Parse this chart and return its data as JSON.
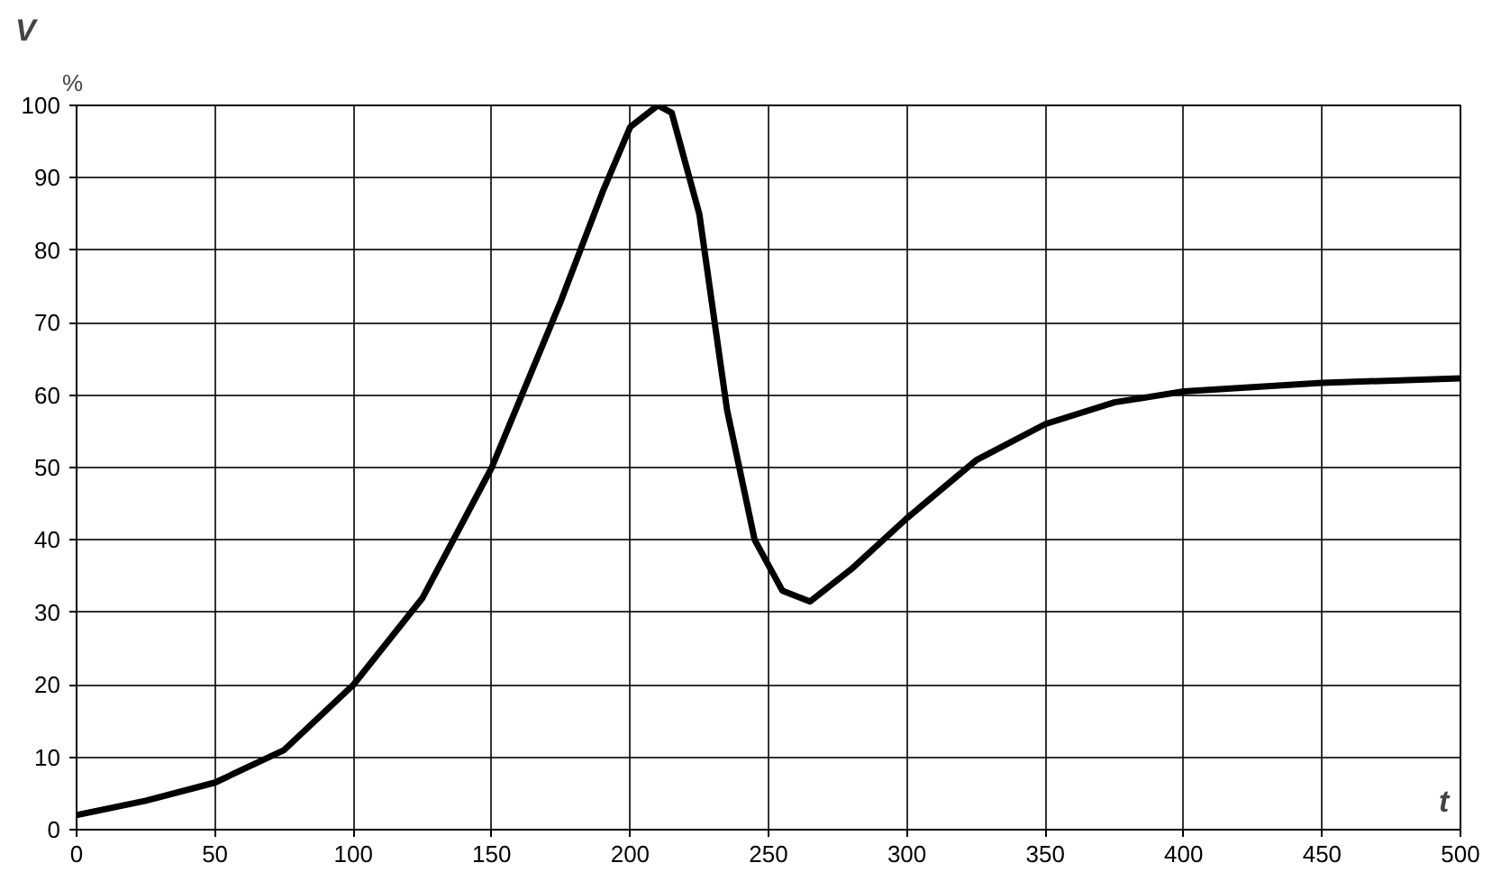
{
  "chart_data": {
    "type": "line",
    "xlabel": "t",
    "ylabel": "V",
    "annotations": [
      "%"
    ],
    "series": [
      {
        "color": "#000000",
        "x": [
          0,
          25,
          50,
          75,
          100,
          125,
          150,
          175,
          190,
          200,
          210,
          215,
          225,
          235,
          245,
          255,
          265,
          280,
          300,
          325,
          350,
          375,
          400,
          450,
          500
        ],
        "values": [
          2,
          4,
          6.5,
          11,
          20,
          32,
          50,
          73,
          88,
          97,
          100,
          99,
          85,
          58,
          40,
          33,
          31.5,
          36,
          43,
          51,
          56,
          59,
          60.5,
          61.7,
          62.3
        ]
      }
    ],
    "xlim": [
      0,
      500
    ],
    "xticks": [
      0,
      50,
      100,
      150,
      200,
      250,
      300,
      350,
      400,
      450,
      500
    ],
    "ylim": [
      0,
      100
    ],
    "yticks": [
      0,
      10,
      20,
      30,
      40,
      50,
      60,
      70,
      80,
      90,
      100
    ],
    "grid": true,
    "marker": "none",
    "line_style": "solid"
  }
}
